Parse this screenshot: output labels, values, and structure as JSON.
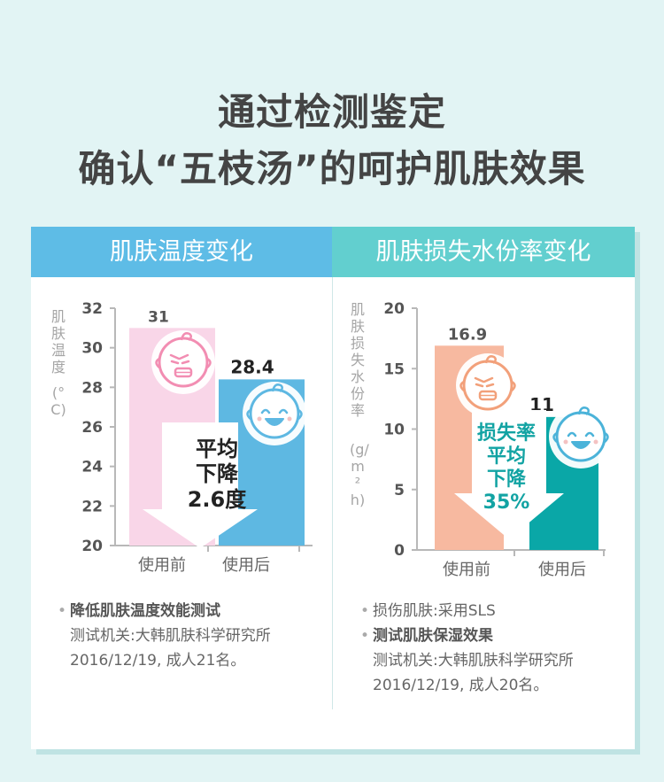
{
  "title": {
    "line1": "通过检测鉴定",
    "line2": "确认“五枝汤”的呵护肌肤效果"
  },
  "panels": {
    "left": {
      "header": "肌肤温度变化",
      "ylabel_text": "肌肤温度",
      "ylabel_unit": "(°C)",
      "arrow_lines": [
        "平均",
        "下降",
        "2.6度"
      ],
      "notes": {
        "bullet": "•",
        "line1": "降低肌肤温度效能测试",
        "line2": "测试机关:大韩肌肤科学研究所",
        "line3": "2016/12/19, 成人21名。"
      }
    },
    "right": {
      "header": "肌肤损失水份率变化",
      "ylabel_text": "肌肤损失水份率",
      "ylabel_unit": "(g/m²h)",
      "arrow_lines": [
        "损失率",
        "平均",
        "下降",
        "35%"
      ],
      "notes": {
        "bullet": "•",
        "line1": "损伤肌肤:采用SLS",
        "line2": "测试肌肤保湿效果",
        "line3": "测试机关:大韩肌肤科学研究所",
        "line4": "2016/12/19, 成人20名。"
      }
    }
  },
  "icons": {
    "before": "crying-baby-face-icon",
    "after": "smiling-baby-face-icon",
    "arrow": "down-arrow-icon"
  },
  "colors": {
    "left_header": "#5ebce6",
    "right_header": "#62cfcf",
    "left_before_bar": "#f9d6e8",
    "left_after_bar": "#5eb8e2",
    "right_before_bar": "#f7b9a0",
    "right_after_bar": "#0aa7a7",
    "accent_teal": "#12a3a3",
    "text_dark": "#444444"
  },
  "chart_data": [
    {
      "type": "bar",
      "categories": [
        "使用前",
        "使用后"
      ],
      "values": [
        31,
        28.4
      ],
      "value_labels": [
        "31",
        "28.4"
      ],
      "title": "肌肤温度变化",
      "xlabel": "",
      "ylabel": "肌肤温度 (°C)",
      "ylim": [
        20,
        32
      ],
      "yticks": [
        20,
        22,
        24,
        26,
        28,
        30,
        32
      ],
      "grid": false,
      "annotation": "平均下降2.6度"
    },
    {
      "type": "bar",
      "categories": [
        "使用前",
        "使用后"
      ],
      "values": [
        16.9,
        11
      ],
      "value_labels": [
        "16.9",
        "11"
      ],
      "title": "肌肤损失水份率变化",
      "xlabel": "",
      "ylabel": "肌肤损失水份率 (g/m²h)",
      "ylim": [
        0,
        20
      ],
      "yticks": [
        0,
        5,
        10,
        15,
        20
      ],
      "grid": false,
      "annotation": "损失率平均下降35%"
    }
  ]
}
